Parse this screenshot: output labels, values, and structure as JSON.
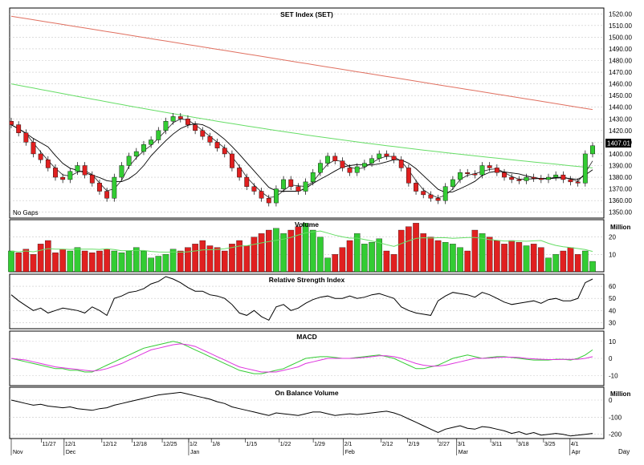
{
  "chart_data": [
    {
      "type": "candlestick",
      "title": "SET Index (SET)",
      "note": "No Gaps",
      "ylim": [
        1345,
        1525
      ],
      "yticks": [
        1350,
        1360,
        1370,
        1380,
        1390,
        1400,
        1410,
        1420,
        1430,
        1440,
        1450,
        1460,
        1470,
        1480,
        1490,
        1500,
        1510,
        1520
      ],
      "yticklabels": [
        "1350.00",
        "1360.00",
        "1370.00",
        "1380.00",
        "1390.00",
        "1400.00",
        "1410.00",
        "1420.00",
        "1430.00",
        "1440.00",
        "1450.00",
        "1460.00",
        "1470.00",
        "1480.00",
        "1490.00",
        "1500.00",
        "1510.00",
        "1520.00"
      ],
      "last_value_label": "1407.01",
      "colors": {
        "up": "#33cc33",
        "down": "#e02020",
        "ma_long": "#e07060",
        "ma_mid": "#66dd66",
        "ma_short": "#000000"
      },
      "candles_close": [
        1425,
        1418,
        1410,
        1400,
        1395,
        1388,
        1380,
        1378,
        1385,
        1390,
        1382,
        1375,
        1368,
        1362,
        1380,
        1390,
        1398,
        1402,
        1408,
        1412,
        1420,
        1428,
        1432,
        1430,
        1425,
        1420,
        1415,
        1410,
        1405,
        1400,
        1388,
        1380,
        1372,
        1368,
        1362,
        1358,
        1370,
        1378,
        1372,
        1368,
        1376,
        1384,
        1392,
        1398,
        1394,
        1388,
        1384,
        1389,
        1392,
        1396,
        1400,
        1398,
        1395,
        1388,
        1375,
        1368,
        1365,
        1362,
        1360,
        1372,
        1378,
        1384,
        1383,
        1382,
        1390,
        1388,
        1384,
        1380,
        1378,
        1377,
        1380,
        1379,
        1378,
        1380,
        1382,
        1378,
        1376,
        1375,
        1400,
        1407
      ],
      "ma_long": [
        1518,
        1438
      ],
      "ma_mid": [
        1460,
        1388
      ]
    },
    {
      "type": "bar",
      "title": "Volume",
      "unit": "Million",
      "ylim": [
        0,
        30
      ],
      "yticks": [
        10,
        20
      ],
      "values": [
        12,
        11,
        13,
        10,
        16,
        18,
        11,
        13,
        12,
        14,
        12,
        11,
        12,
        13,
        12,
        11,
        12,
        14,
        12,
        8,
        9,
        10,
        13,
        12,
        14,
        16,
        18,
        15,
        14,
        12,
        16,
        18,
        15,
        20,
        22,
        24,
        25,
        22,
        24,
        26,
        28,
        24,
        20,
        8,
        10,
        14,
        18,
        22,
        16,
        17,
        19,
        12,
        10,
        24,
        26,
        28,
        22,
        20,
        18,
        17,
        16,
        14,
        12,
        24,
        22,
        20,
        18,
        16,
        18,
        17,
        15,
        16,
        14,
        8,
        10,
        12,
        14,
        10,
        12,
        6
      ],
      "ma": [
        12,
        16
      ]
    },
    {
      "type": "line",
      "title": "Relative Strength Index",
      "ylim": [
        25,
        70
      ],
      "yticks": [
        30,
        40,
        50,
        60
      ],
      "values": [
        53,
        48,
        44,
        40,
        42,
        38,
        40,
        42,
        41,
        40,
        38,
        43,
        40,
        36,
        50,
        52,
        55,
        56,
        58,
        62,
        64,
        68,
        66,
        63,
        59,
        56,
        56,
        53,
        52,
        50,
        45,
        38,
        36,
        40,
        35,
        32,
        43,
        45,
        40,
        42,
        46,
        49,
        51,
        52,
        50,
        50,
        52,
        50,
        51,
        53,
        54,
        52,
        50,
        43,
        40,
        38,
        37,
        36,
        48,
        52,
        55,
        54,
        53,
        51,
        55,
        53,
        50,
        47,
        45,
        46,
        47,
        48,
        46,
        49,
        50,
        48,
        48,
        50,
        63,
        66
      ]
    },
    {
      "type": "line",
      "title": "MACD",
      "ylim": [
        -16,
        16
      ],
      "yticks": [
        -10,
        0,
        10
      ],
      "yticklabels": [
        "-10",
        "0",
        "10"
      ],
      "series": [
        {
          "color": "#33cc33",
          "values": [
            0,
            -1,
            -2,
            -3,
            -4,
            -5,
            -6,
            -6,
            -7,
            -7,
            -8,
            -8,
            -6,
            -4,
            -2,
            0,
            2,
            4,
            6,
            7,
            8,
            9,
            10,
            9,
            7,
            5,
            3,
            1,
            -1,
            -3,
            -5,
            -7,
            -8,
            -9,
            -9,
            -8,
            -7,
            -6,
            -4,
            -2,
            0,
            0.5,
            1,
            1,
            0.5,
            0,
            0,
            0.5,
            1,
            1.5,
            2,
            1,
            0,
            -2,
            -4,
            -6,
            -6,
            -5,
            -4,
            -2,
            0,
            1,
            2,
            1,
            0,
            0.5,
            1,
            1,
            0.5,
            0,
            -0.5,
            -1,
            -1,
            -1,
            -0.5,
            -0.5,
            -1,
            0,
            2,
            5
          ]
        },
        {
          "color": "#dd33dd",
          "values": [
            0,
            -0.5,
            -1,
            -2,
            -3,
            -4,
            -5,
            -5.5,
            -6,
            -6.5,
            -7,
            -7.5,
            -7,
            -6,
            -4.5,
            -3,
            -1,
            1,
            3,
            5,
            6,
            7,
            8,
            8.5,
            8,
            7,
            5,
            3,
            1,
            -1,
            -3,
            -5,
            -6,
            -7,
            -8,
            -8,
            -8,
            -7,
            -6,
            -5,
            -3,
            -2,
            -1,
            0,
            0,
            0,
            0,
            0.2,
            0.5,
            1,
            1.5,
            1.5,
            1,
            0,
            -1.5,
            -3,
            -4,
            -4.5,
            -4.5,
            -4,
            -3,
            -2,
            -1,
            0,
            0,
            0.2,
            0.5,
            0.7,
            0.7,
            0.5,
            0,
            -0.3,
            -0.5,
            -0.7,
            -0.7,
            -0.6,
            -0.6,
            -0.5,
            0,
            1
          ]
        }
      ]
    },
    {
      "type": "line",
      "title": "On Balance Volume",
      "unit": "Million",
      "ylim": [
        -225,
        75
      ],
      "yticks": [
        -200,
        -100,
        0
      ],
      "yticklabels": [
        "-200",
        "-100",
        "0"
      ],
      "values": [
        0,
        -10,
        -20,
        -30,
        -25,
        -35,
        -40,
        -45,
        -40,
        -50,
        -55,
        -60,
        -50,
        -45,
        -30,
        -20,
        -10,
        0,
        10,
        20,
        30,
        35,
        40,
        45,
        35,
        25,
        15,
        5,
        -10,
        -20,
        -40,
        -50,
        -60,
        -70,
        -80,
        -90,
        -75,
        -80,
        -85,
        -90,
        -80,
        -70,
        -70,
        -80,
        -90,
        -85,
        -80,
        -85,
        -80,
        -75,
        -70,
        -65,
        -75,
        -90,
        -110,
        -130,
        -150,
        -170,
        -190,
        -170,
        -160,
        -150,
        -165,
        -170,
        -155,
        -160,
        -170,
        -180,
        -195,
        -185,
        -200,
        -190,
        -205,
        -200,
        -195,
        -200,
        -210,
        -205,
        -200,
        -195
      ]
    }
  ],
  "x_axis": {
    "date_labels": [
      "11/27",
      "12/1",
      "12/12",
      "12/18",
      "12/25",
      "1/2",
      "1/8",
      "1/15",
      "1/22",
      "1/29",
      "2/1",
      "2/12",
      "2/19",
      "2/27",
      "3/1",
      "3/11",
      "3/18",
      "3/25",
      "4/1"
    ],
    "date_label_index": [
      8,
      14,
      24,
      32,
      40,
      47,
      53,
      62,
      71,
      80,
      88,
      98,
      105,
      113,
      118,
      127,
      134,
      141,
      148
    ],
    "month_labels": [
      "Nov",
      "Dec",
      "Jan",
      "Feb",
      "Mar",
      "Apr"
    ],
    "month_label_index": [
      0,
      14,
      47,
      88,
      118,
      148
    ],
    "bottom_right_label": "Day"
  }
}
